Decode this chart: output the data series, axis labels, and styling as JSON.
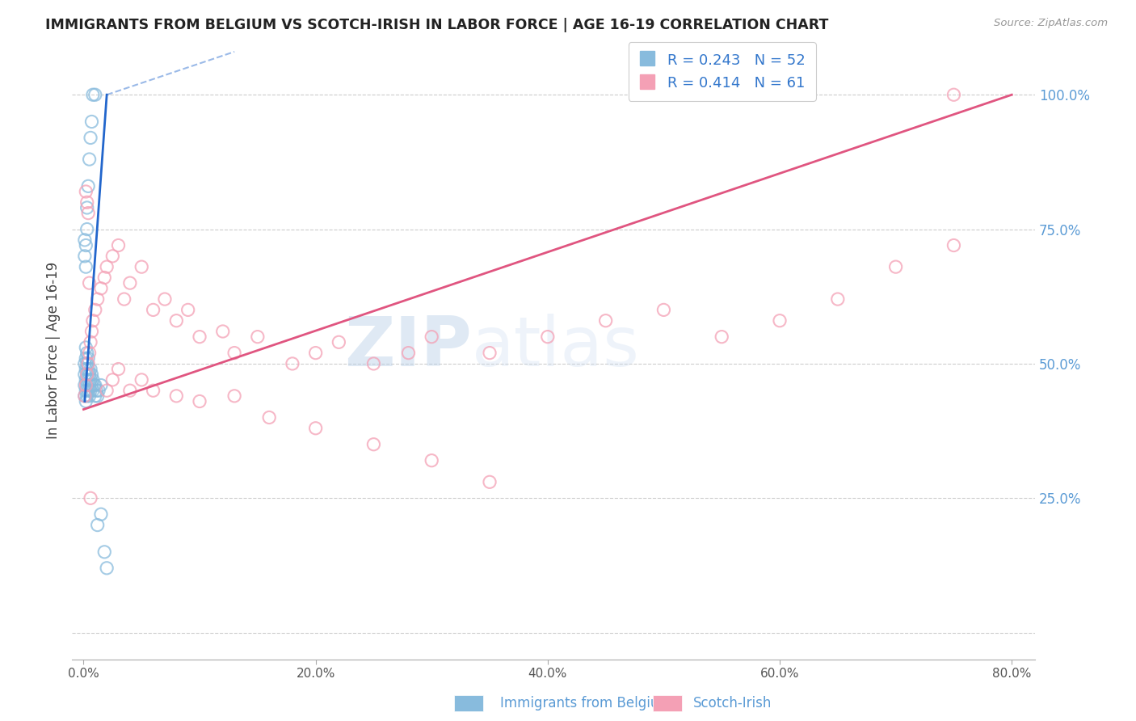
{
  "title": "IMMIGRANTS FROM BELGIUM VS SCOTCH-IRISH IN LABOR FORCE | AGE 16-19 CORRELATION CHART",
  "source": "Source: ZipAtlas.com",
  "ylabel": "In Labor Force | Age 16-19",
  "x_tick_labels": [
    "0.0%",
    "20.0%",
    "40.0%",
    "60.0%",
    "80.0%"
  ],
  "x_tick_vals": [
    0.0,
    0.2,
    0.4,
    0.6,
    0.8
  ],
  "y_tick_labels": [
    "25.0%",
    "50.0%",
    "75.0%",
    "100.0%"
  ],
  "y_tick_vals": [
    0.25,
    0.5,
    0.75,
    1.0
  ],
  "xlim": [
    -0.01,
    0.82
  ],
  "ylim": [
    -0.05,
    1.1
  ],
  "blue_color": "#88bbdd",
  "blue_edge_color": "#88bbdd",
  "pink_color": "#f4a0b5",
  "pink_edge_color": "#f4a0b5",
  "blue_line_color": "#2266cc",
  "pink_line_color": "#e05580",
  "watermark_zip": "ZIP",
  "watermark_atlas": "atlas",
  "legend_blue_r": "R = 0.243",
  "legend_blue_n": "N = 52",
  "legend_pink_r": "R = 0.414",
  "legend_pink_n": "N = 61",
  "legend_label_blue": "Immigrants from Belgium",
  "legend_label_pink": "Scotch-Irish",
  "blue_x": [
    0.001,
    0.001,
    0.001,
    0.001,
    0.002,
    0.002,
    0.002,
    0.002,
    0.002,
    0.002,
    0.003,
    0.003,
    0.003,
    0.003,
    0.003,
    0.004,
    0.004,
    0.004,
    0.004,
    0.005,
    0.005,
    0.005,
    0.006,
    0.006,
    0.006,
    0.007,
    0.007,
    0.008,
    0.008,
    0.009,
    0.01,
    0.01,
    0.011,
    0.012,
    0.013,
    0.015,
    0.001,
    0.001,
    0.002,
    0.002,
    0.003,
    0.003,
    0.004,
    0.005,
    0.006,
    0.007,
    0.008,
    0.01,
    0.012,
    0.015,
    0.018,
    0.02
  ],
  "blue_y": [
    0.44,
    0.46,
    0.48,
    0.5,
    0.43,
    0.45,
    0.47,
    0.49,
    0.51,
    0.53,
    0.44,
    0.46,
    0.48,
    0.5,
    0.52,
    0.45,
    0.47,
    0.49,
    0.51,
    0.44,
    0.46,
    0.48,
    0.45,
    0.47,
    0.49,
    0.46,
    0.48,
    0.45,
    0.47,
    0.46,
    0.44,
    0.46,
    0.45,
    0.44,
    0.45,
    0.46,
    0.7,
    0.73,
    0.68,
    0.72,
    0.75,
    0.79,
    0.83,
    0.88,
    0.92,
    0.95,
    1.0,
    1.0,
    0.2,
    0.22,
    0.15,
    0.12
  ],
  "pink_x": [
    0.001,
    0.002,
    0.003,
    0.004,
    0.005,
    0.006,
    0.007,
    0.008,
    0.01,
    0.012,
    0.015,
    0.018,
    0.02,
    0.025,
    0.03,
    0.035,
    0.04,
    0.05,
    0.06,
    0.07,
    0.08,
    0.09,
    0.1,
    0.12,
    0.13,
    0.15,
    0.18,
    0.2,
    0.22,
    0.25,
    0.28,
    0.3,
    0.35,
    0.4,
    0.45,
    0.5,
    0.02,
    0.025,
    0.03,
    0.04,
    0.05,
    0.06,
    0.08,
    0.1,
    0.13,
    0.16,
    0.2,
    0.25,
    0.3,
    0.35,
    0.55,
    0.6,
    0.65,
    0.7,
    0.75,
    0.002,
    0.003,
    0.004,
    0.005,
    0.006,
    0.75
  ],
  "pink_y": [
    0.44,
    0.46,
    0.48,
    0.5,
    0.52,
    0.54,
    0.56,
    0.58,
    0.6,
    0.62,
    0.64,
    0.66,
    0.68,
    0.7,
    0.72,
    0.62,
    0.65,
    0.68,
    0.6,
    0.62,
    0.58,
    0.6,
    0.55,
    0.56,
    0.52,
    0.55,
    0.5,
    0.52,
    0.54,
    0.5,
    0.52,
    0.55,
    0.52,
    0.55,
    0.58,
    0.6,
    0.45,
    0.47,
    0.49,
    0.45,
    0.47,
    0.45,
    0.44,
    0.43,
    0.44,
    0.4,
    0.38,
    0.35,
    0.32,
    0.28,
    0.55,
    0.58,
    0.62,
    0.68,
    0.72,
    0.82,
    0.8,
    0.78,
    0.65,
    0.25,
    1.0
  ],
  "pink_line_x0": 0.0,
  "pink_line_y0": 0.415,
  "pink_line_x1": 0.8,
  "pink_line_y1": 1.0,
  "blue_line_solid_x0": 0.001,
  "blue_line_solid_y0": 0.43,
  "blue_line_solid_x1": 0.02,
  "blue_line_solid_y1": 1.0,
  "blue_line_dash_x0": 0.02,
  "blue_line_dash_y0": 1.0,
  "blue_line_dash_x1": 0.13,
  "blue_line_dash_y1": 1.08
}
